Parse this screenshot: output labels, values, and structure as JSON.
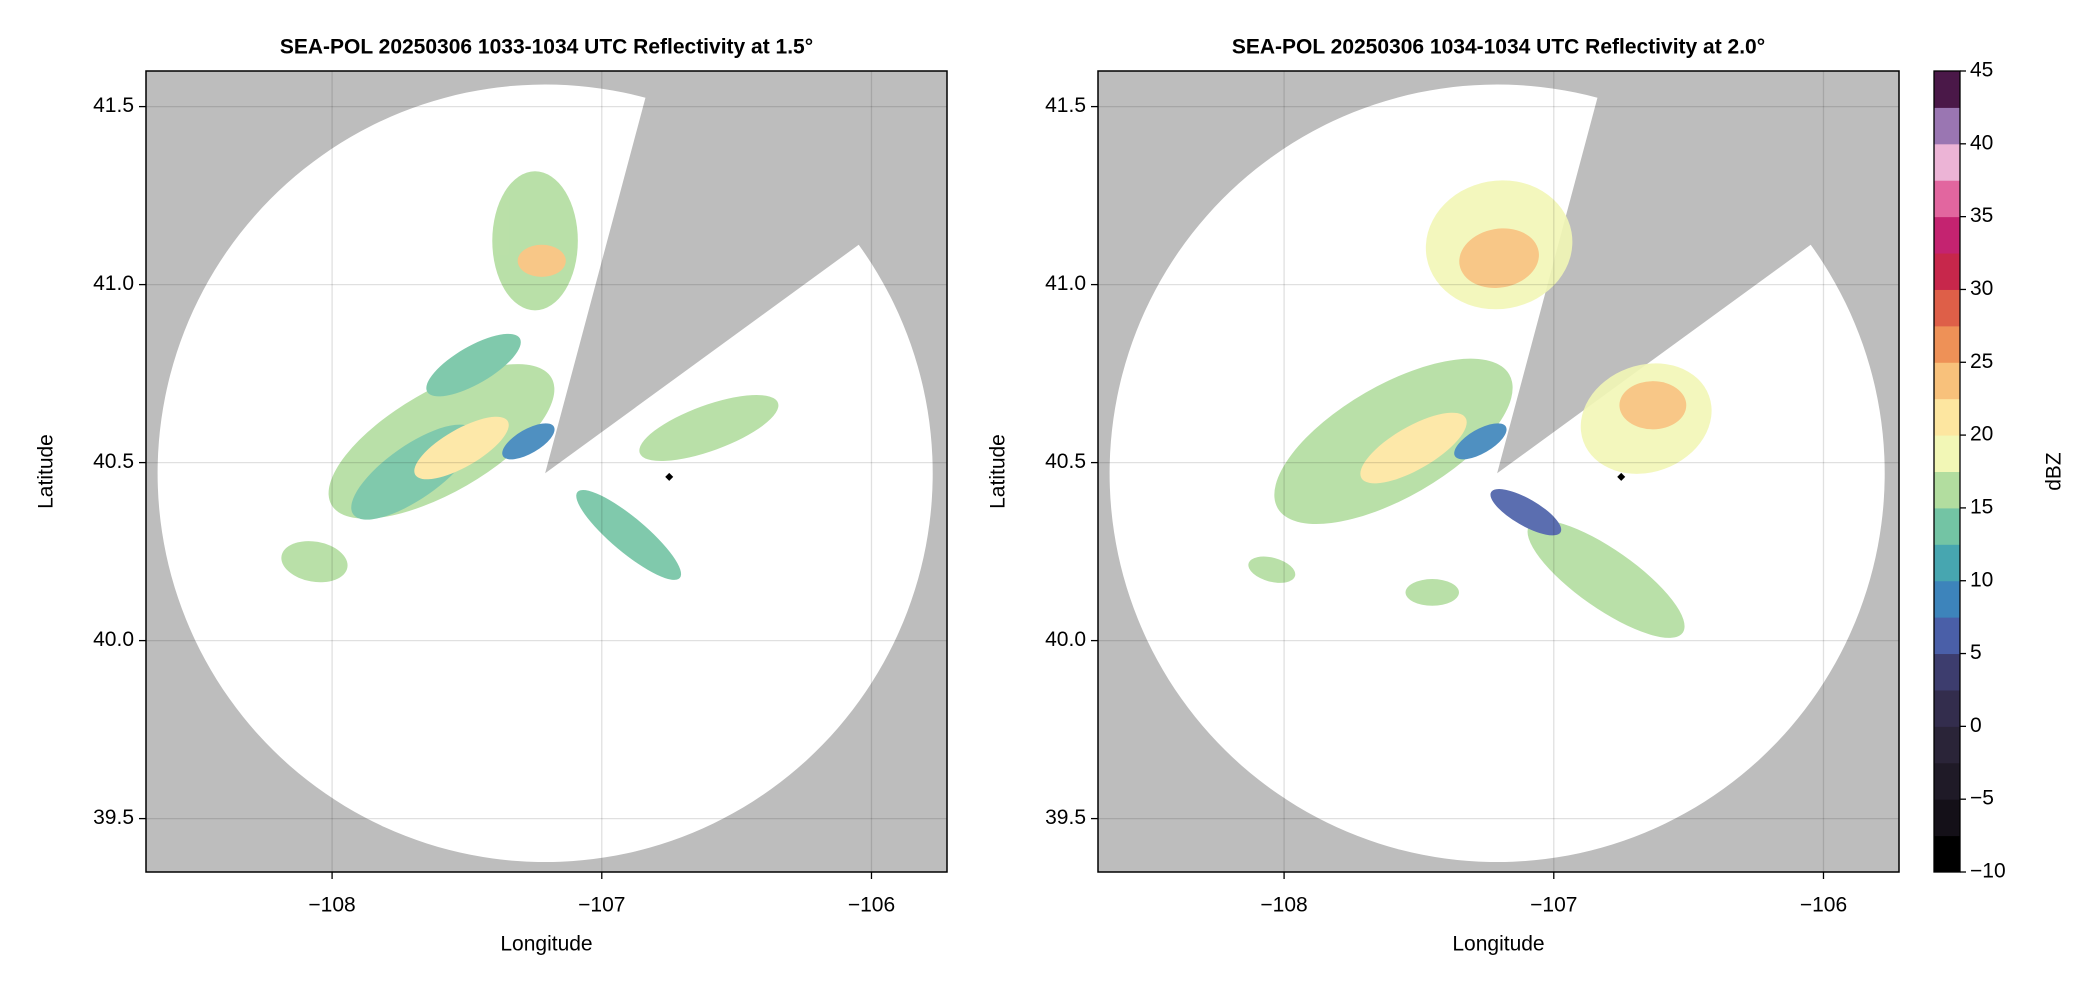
{
  "chart_data": [
    {
      "type": "radar_ppi",
      "title": "SEA-POL 20250306 1033-1034 UTC Reflectivity at 1.5°",
      "x_label": "Longitude",
      "y_label": "Latitude",
      "xlim": [
        -108.69,
        -105.72
      ],
      "ylim": [
        39.35,
        41.6
      ],
      "xticks": [
        {
          "value": -108,
          "label": "−108"
        },
        {
          "value": -107,
          "label": "−107"
        },
        {
          "value": -106,
          "label": "−106"
        }
      ],
      "yticks": [
        {
          "value": 39.5,
          "label": "39.5"
        },
        {
          "value": 40,
          "label": "40.0"
        },
        {
          "value": 40.5,
          "label": "40.5"
        },
        {
          "value": 41,
          "label": "41.0"
        },
        {
          "value": 41.5,
          "label": "41.5"
        }
      ],
      "grid": true,
      "radar_center": {
        "lon": -107.21,
        "lat": 40.47
      },
      "radar_radius": {
        "lon": 1.437,
        "lat": 1.092
      },
      "blocked_sector": [
        15,
        54
      ],
      "marker": {
        "x": -106.75,
        "y": 40.46
      }
    },
    {
      "type": "radar_ppi",
      "title": "SEA-POL 20250306 1034-1034 UTC Reflectivity at 2.0°",
      "x_label": "Longitude",
      "y_label": "Latitude",
      "xlim": [
        -108.69,
        -105.72
      ],
      "ylim": [
        39.35,
        41.6
      ],
      "xticks": [
        {
          "value": -108,
          "label": "−108"
        },
        {
          "value": -107,
          "label": "−107"
        },
        {
          "value": -106,
          "label": "−106"
        }
      ],
      "yticks": [
        {
          "value": 39.5,
          "label": "39.5"
        },
        {
          "value": 40,
          "label": "40.0"
        },
        {
          "value": 40.5,
          "label": "40.5"
        },
        {
          "value": 41,
          "label": "41.0"
        },
        {
          "value": 41.5,
          "label": "41.5"
        }
      ],
      "grid": true,
      "radar_center": {
        "lon": -107.21,
        "lat": 40.47
      },
      "radar_radius": {
        "lon": 1.437,
        "lat": 1.092
      },
      "blocked_sector": [
        15,
        54
      ],
      "marker": {
        "x": -106.75,
        "y": 40.46
      },
      "colorbar": {
        "label": "dBZ",
        "clim": [
          -10,
          45
        ],
        "ticks": [
          {
            "value": -10,
            "label": "−10"
          },
          {
            "value": -5,
            "label": "−5"
          },
          0,
          5,
          10,
          15,
          20,
          25,
          30,
          35,
          40,
          45
        ],
        "colors": [
          "#000000",
          "#141018",
          "#1f1a27",
          "#2a2438",
          "#332d4d",
          "#3d3d6e",
          "#4a5fa8",
          "#3d84bb",
          "#47a6b0",
          "#73c4a4",
          "#b2dd9f",
          "#f2f7b6",
          "#fde6a0",
          "#f8c17b",
          "#ee9157",
          "#de5f48",
          "#c7274b",
          "#c42370",
          "#e2669f",
          "#ecb4d6",
          "#9a76b2",
          "#4a1848"
        ]
      }
    }
  ]
}
